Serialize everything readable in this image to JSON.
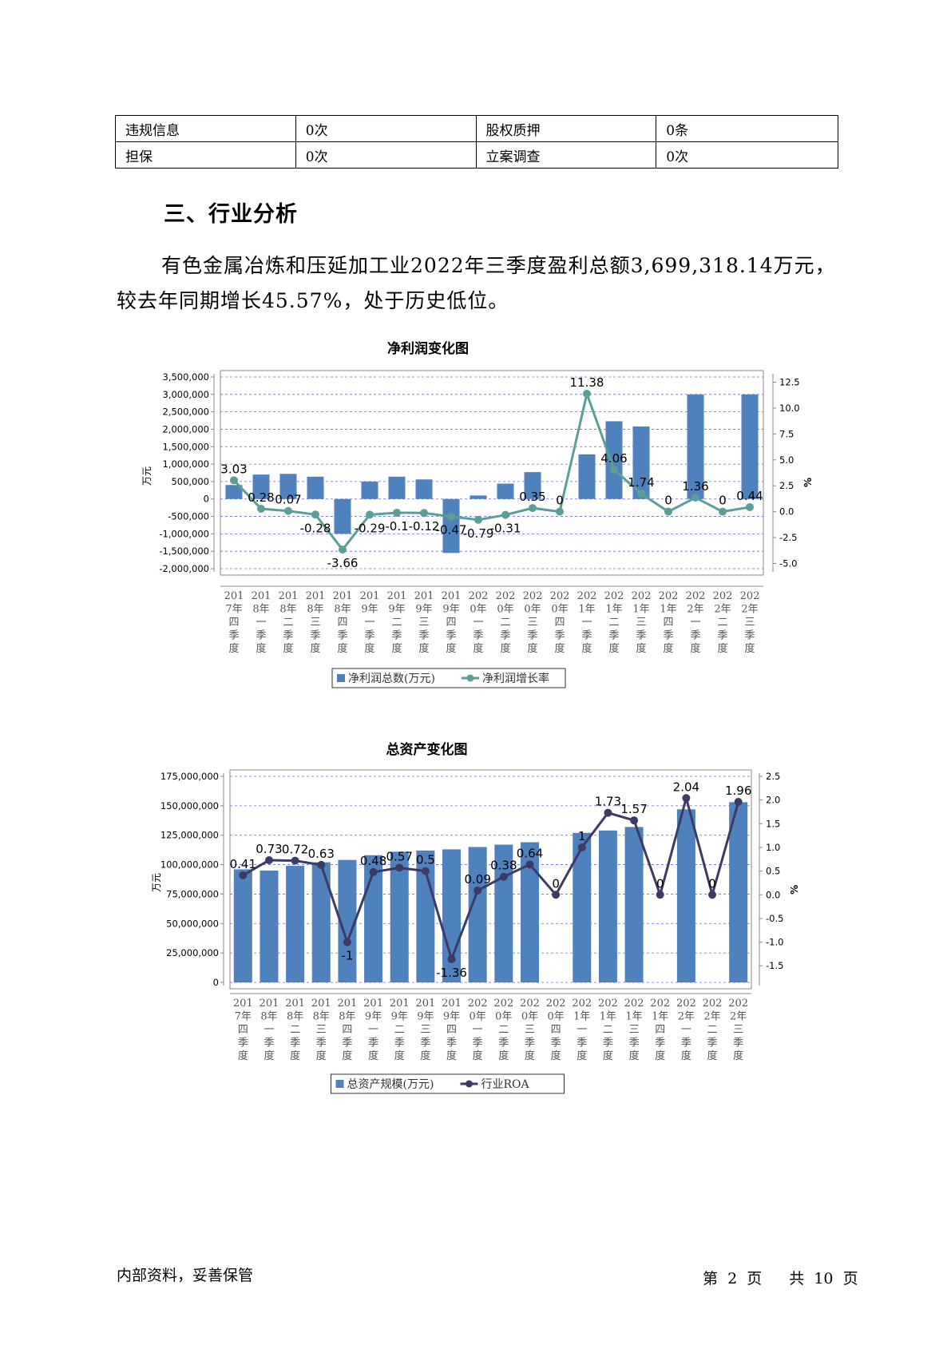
{
  "info_table": {
    "rows": [
      [
        "违规信息",
        "0次",
        "股权质押",
        "0条"
      ],
      [
        "担保",
        "0次",
        "立案调查",
        "0次"
      ]
    ]
  },
  "section_title": "三、行业分析",
  "paragraph": "有色金属冶炼和压延加工业2022年三季度盈利总额3,699,318.14万元，较去年同期增长45.57%，处于历史低位。",
  "colors": {
    "bar": "#4f81bd",
    "line1": "#5a9e96",
    "line2": "#3b3b66",
    "grid": "#6b6bd0"
  },
  "chart_data": [
    {
      "type": "bar",
      "title": "净利润变化图",
      "ylabel": "万元",
      "y2label": "%",
      "categories": [
        "2017年四季度",
        "2018年一季度",
        "2018年二季度",
        "2018年三季度",
        "2018年四季度",
        "2019年一季度",
        "2019年二季度",
        "2019年三季度",
        "2019年四季度",
        "2020年一季度",
        "2020年二季度",
        "2020年三季度",
        "2020年四季度",
        "2021年一季度",
        "2021年二季度",
        "2021年三季度",
        "2021年四季度",
        "2022年一季度",
        "2022年二季度",
        "2022年三季度"
      ],
      "series": [
        {
          "name": "净利润总数(万元)",
          "type": "bar",
          "axis": "left",
          "values": [
            400000,
            700000,
            720000,
            640000,
            -1000000,
            500000,
            640000,
            560000,
            -1550000,
            100000,
            440000,
            770000,
            0,
            1280000,
            2230000,
            2080000,
            0,
            3000000,
            0,
            3000000
          ]
        },
        {
          "name": "净利润增长率",
          "type": "line",
          "axis": "right",
          "values": [
            3.03,
            0.28,
            0.07,
            -0.28,
            -3.66,
            -0.29,
            -0.1,
            -0.12,
            -0.47,
            -0.79,
            -0.31,
            0.35,
            0,
            11.38,
            4.06,
            1.74,
            0,
            1.36,
            0,
            0.44
          ],
          "labels": [
            "3.03",
            "0.28",
            "0.07",
            "-0.28",
            "-3.66",
            "-0.29",
            "-0.1",
            "-0.12",
            "-0.47",
            "-0.79",
            "-0.31",
            "0.35",
            "0",
            "11.38",
            "4.06",
            "1.74",
            "0",
            "1.36",
            "0",
            "0.44"
          ]
        }
      ],
      "ylim": [
        -2000000,
        3500000
      ],
      "yticks": [
        3500000,
        3000000,
        2500000,
        2000000,
        1500000,
        1000000,
        500000,
        0,
        -500000,
        -1000000,
        -1500000,
        -2000000
      ],
      "y2lim": [
        -5.5,
        13
      ],
      "y2ticks": [
        12.5,
        10.0,
        7.5,
        5.0,
        2.5,
        0.0,
        -2.5,
        -5.0
      ],
      "grid": true,
      "legend": "bottom"
    },
    {
      "type": "bar",
      "title": "总资产变化图",
      "ylabel": "万元",
      "y2label": "%",
      "categories": [
        "2017年四季度",
        "2018年一季度",
        "2018年二季度",
        "2018年三季度",
        "2018年四季度",
        "2019年一季度",
        "2019年二季度",
        "2019年三季度",
        "2019年四季度",
        "2020年一季度",
        "2020年二季度",
        "2020年三季度",
        "2020年四季度",
        "2021年一季度",
        "2021年二季度",
        "2021年三季度",
        "2021年四季度",
        "2022年一季度",
        "2022年二季度",
        "2022年三季度"
      ],
      "series": [
        {
          "name": "总资产规模(万元)",
          "type": "bar",
          "axis": "left",
          "values": [
            96000000,
            95000000,
            99000000,
            102000000,
            104000000,
            108000000,
            111000000,
            112000000,
            113000000,
            115000000,
            117000000,
            119000000,
            0,
            127000000,
            129000000,
            132000000,
            0,
            147000000,
            0,
            153000000
          ]
        },
        {
          "name": "行业ROA",
          "type": "line",
          "axis": "right",
          "values": [
            0.41,
            0.73,
            0.72,
            0.63,
            -1,
            0.48,
            0.57,
            0.5,
            -1.36,
            0.09,
            0.38,
            0.64,
            0,
            1,
            1.73,
            1.57,
            0,
            2.04,
            0,
            1.96
          ],
          "labels": [
            "0.41",
            "0.73",
            "0.72",
            "0.63",
            "-1",
            "0.48",
            "0.57",
            "0.5",
            "-1.36",
            "0.09",
            "0.38",
            "0.64",
            "0",
            "1",
            "1.73",
            "1.57",
            "0",
            "2.04",
            "0",
            "1.96"
          ]
        }
      ],
      "ylim": [
        0,
        175000000
      ],
      "yticks": [
        175000000,
        150000000,
        125000000,
        100000000,
        75000000,
        50000000,
        25000000,
        0
      ],
      "y2lim": [
        -1.85,
        2.5
      ],
      "y2ticks": [
        2.5,
        2.0,
        1.5,
        1.0,
        0.5,
        0.0,
        -0.5,
        -1.0,
        -1.5
      ],
      "grid": true,
      "legend": "bottom"
    }
  ],
  "footer": {
    "left": "内部资料，妥善保管",
    "page_prefix": "第",
    "page_current": "2",
    "page_suffix": "页",
    "total_prefix": "共",
    "page_total": "10",
    "total_suffix": "页"
  }
}
